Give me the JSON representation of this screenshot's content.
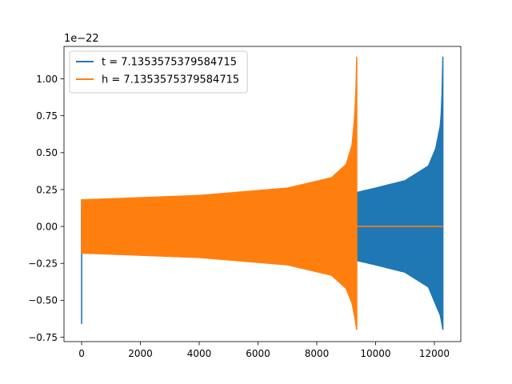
{
  "chart_data": {
    "type": "line",
    "title": "",
    "xlabel": "",
    "ylabel": "",
    "y_offset_label": "1e−22",
    "xlim": [
      -600,
      12900
    ],
    "ylim": [
      -0.78,
      1.22
    ],
    "xticks": [
      0,
      2000,
      4000,
      6000,
      8000,
      10000,
      12000
    ],
    "yticks": [
      -0.75,
      -0.5,
      -0.25,
      0.0,
      0.25,
      0.5,
      0.75,
      1.0
    ],
    "ytick_labels": [
      "−0.75",
      "−0.50",
      "−0.25",
      "0.00",
      "0.25",
      "0.50",
      "0.75",
      "1.00"
    ],
    "grid": false,
    "legend_position": "top-left",
    "series": [
      {
        "name": "t = 7.1353575379584715",
        "color": "#1f77b4",
        "envelope": {
          "x": [
            0,
            9350,
            10000,
            11000,
            11800,
            12050,
            12200,
            12250,
            12290
          ],
          "upper": [
            0.18,
            0.23,
            0.26,
            0.31,
            0.41,
            0.53,
            0.68,
            0.8,
            1.15
          ],
          "lower": [
            -0.18,
            -0.23,
            -0.26,
            -0.31,
            -0.41,
            -0.53,
            -0.6,
            -0.65,
            -0.7
          ]
        },
        "spikes": [
          {
            "x": 0,
            "upper": 0.12,
            "lower": -0.66
          }
        ]
      },
      {
        "name": "h = 7.1353575379584715",
        "color": "#ff7f0e",
        "envelope": {
          "x": [
            0,
            4000,
            7000,
            8500,
            9000,
            9200,
            9280,
            9330,
            9360
          ],
          "upper": [
            0.18,
            0.21,
            0.26,
            0.33,
            0.42,
            0.55,
            0.72,
            0.9,
            1.15
          ],
          "lower": [
            -0.18,
            -0.21,
            -0.26,
            -0.33,
            -0.42,
            -0.52,
            -0.6,
            -0.66,
            -0.7
          ]
        },
        "flat_after": {
          "x_start": 9370,
          "x_end": 12290,
          "y": 0.0
        }
      }
    ]
  }
}
